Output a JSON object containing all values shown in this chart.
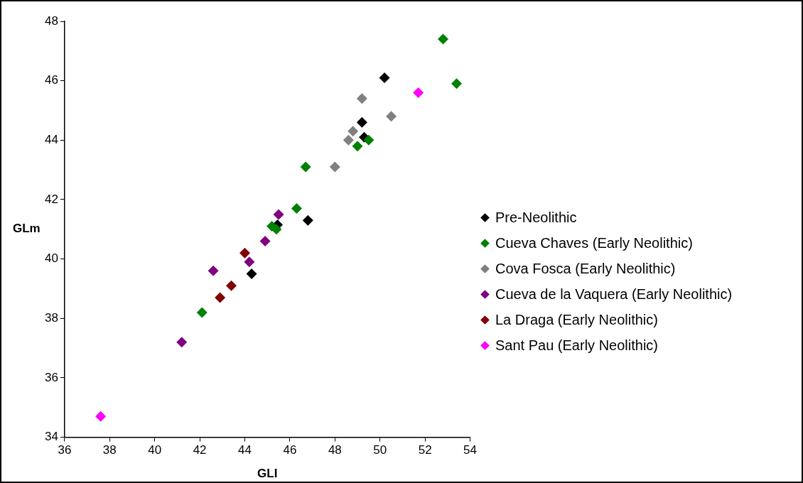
{
  "chart_data": {
    "type": "scatter",
    "xlabel": "GLI",
    "ylabel": "GLm",
    "xlim": [
      36,
      54
    ],
    "xticks": [
      36,
      38,
      40,
      42,
      44,
      46,
      48,
      50,
      52,
      54
    ],
    "ylim": [
      34,
      48
    ],
    "yticks": [
      34,
      36,
      38,
      40,
      42,
      44,
      46,
      48
    ],
    "grid": false,
    "legend": "right",
    "marker": "diamond",
    "series": [
      {
        "name": "Pre-Neolithic",
        "color": "#000000",
        "x": [
          50.2,
          49.2,
          49.3,
          46.8,
          45.45,
          44.3
        ],
        "values": [
          46.1,
          44.6,
          44.1,
          41.3,
          41.15,
          39.5
        ]
      },
      {
        "name": "Cueva Chaves (Early Neolithic)",
        "color": "#008000",
        "x": [
          52.8,
          53.4,
          49.5,
          49.0,
          46.7,
          46.3,
          45.2,
          45.4,
          42.1
        ],
        "values": [
          47.4,
          45.9,
          44.0,
          43.8,
          43.1,
          41.7,
          41.1,
          41.0,
          38.2
        ]
      },
      {
        "name": "Cova Fosca (Early Neolithic)",
        "color": "#808080",
        "x": [
          49.2,
          50.5,
          48.8,
          48.6,
          48.0
        ],
        "values": [
          45.4,
          44.8,
          44.3,
          44.0,
          43.1
        ]
      },
      {
        "name": "Cueva de la Vaquera (Early Neolithic)",
        "color": "#800080",
        "x": [
          45.5,
          44.9,
          44.2,
          42.6,
          41.2
        ],
        "values": [
          41.5,
          40.6,
          39.9,
          39.6,
          37.2
        ]
      },
      {
        "name": "La Draga (Early Neolithic)",
        "color": "#800000",
        "x": [
          44.0,
          43.4,
          42.9
        ],
        "values": [
          40.2,
          39.1,
          38.7
        ]
      },
      {
        "name": "Sant Pau (Early Neolithic)",
        "color": "#ff00ff",
        "x": [
          51.7,
          37.6
        ],
        "values": [
          45.6,
          34.7
        ]
      }
    ]
  }
}
